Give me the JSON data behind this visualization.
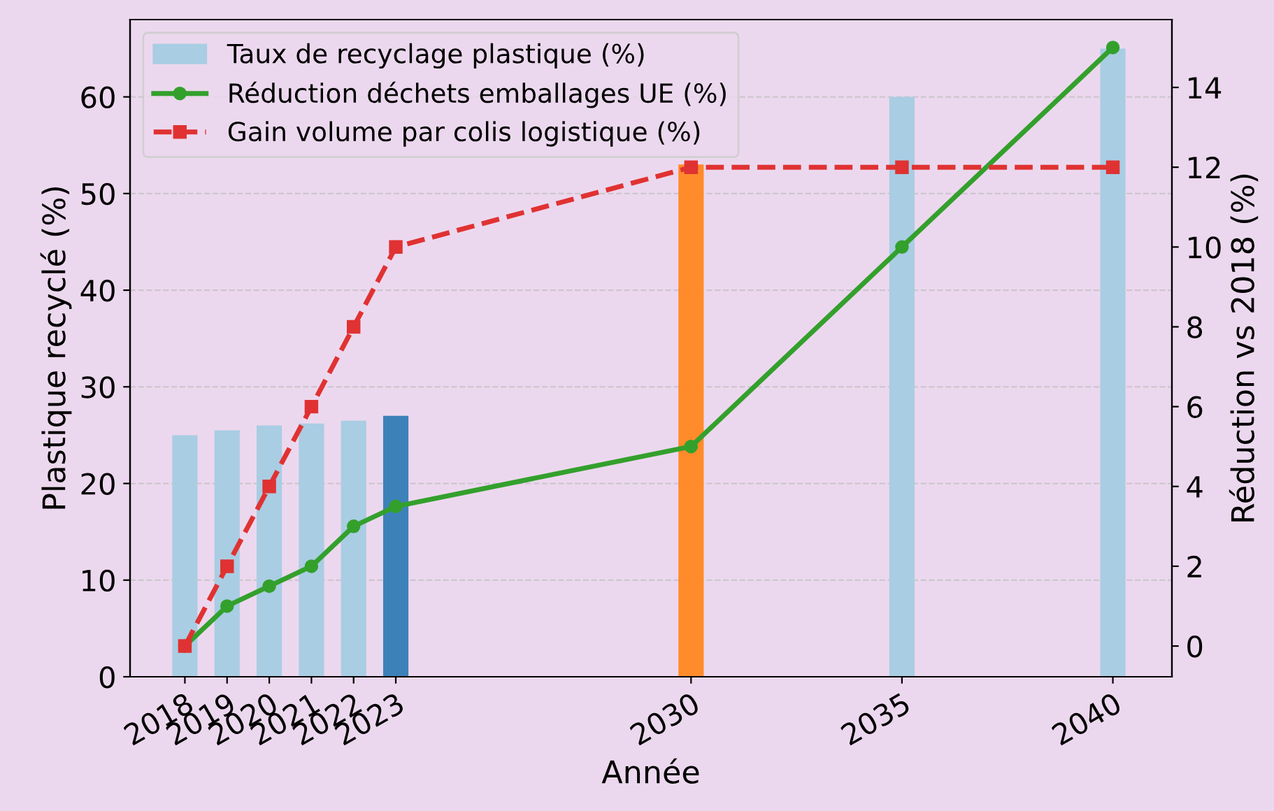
{
  "chart_data": {
    "type": "bar",
    "xlabel": "Année",
    "ylabel": "Plastique recyclé (%)",
    "y2label": "Réduction vs 2018 (%)",
    "x": [
      2018,
      2019,
      2020,
      2021,
      2022,
      2023,
      2030,
      2035,
      2040
    ],
    "series": [
      {
        "name": "Taux de recyclage plastique (%)",
        "color": "#a9cde3",
        "colors": [
          "#a9cde3",
          "#a9cde3",
          "#a9cde3",
          "#a9cde3",
          "#a9cde3",
          "#3d81b9",
          "#ff8b2a",
          "#a9cde3",
          "#a9cde3"
        ],
        "values": [
          25,
          25.5,
          26,
          26.2,
          26.5,
          27,
          53,
          60,
          65
        ]
      },
      {
        "name": "Réduction déchets emballages UE (%)",
        "type": "line",
        "axis": "y2",
        "color": "#33a02c",
        "marker": "circle",
        "line_style": "solid",
        "values": [
          0,
          1,
          1.5,
          2,
          3,
          3.5,
          5,
          10,
          15
        ]
      },
      {
        "name": "Gain volume par colis logistique (%)",
        "type": "line",
        "axis": "y2",
        "color": "#e03232",
        "marker": "square",
        "line_style": "dashed",
        "values": [
          0,
          2,
          4,
          6,
          8,
          10,
          12,
          12,
          12
        ]
      }
    ],
    "xlim": [
      2016.7,
      2041.4
    ],
    "xticks": [
      2018,
      2019,
      2020,
      2021,
      2022,
      2023,
      2030,
      2035,
      2040
    ],
    "ylim": [
      0,
      68
    ],
    "yticks": [
      0,
      10,
      20,
      30,
      40,
      50,
      60
    ],
    "y2lim": [
      -0.77,
      15.7
    ],
    "y2ticks": [
      0,
      2,
      4,
      6,
      8,
      10,
      12,
      14
    ],
    "grid": "y",
    "legend": "top left"
  }
}
